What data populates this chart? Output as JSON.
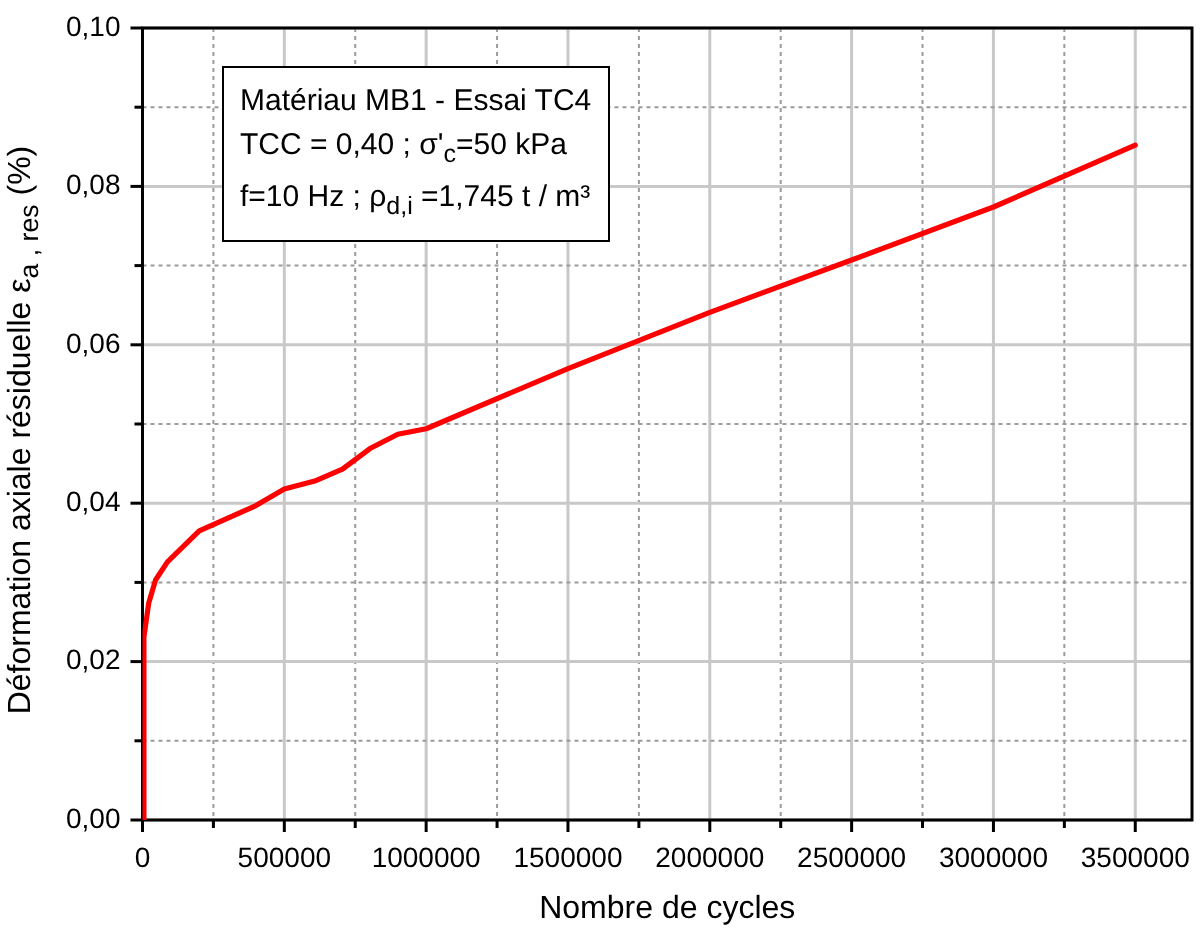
{
  "chart_data": {
    "type": "line",
    "xlabel": "Nombre de cycles",
    "ylabel": "Déformation axiale résiduelle ε$_{a , res}$ (%)",
    "annotations": [
      "Matériau MB1 - Essai TC4",
      "TCC = 0,40 ; σ'$_{c}$=50 kPa",
      "f=10 Hz  ; ρ$_{d,i}$ =1,745 t / m³"
    ],
    "series": [
      {
        "color": "#ff0000",
        "x": [
          0,
          5000,
          22000,
          46000,
          88000,
          200000,
          400000,
          500000,
          607000,
          705000,
          802000,
          900000,
          1000000,
          1500000,
          2000000,
          2500000,
          3000000,
          3500000
        ],
        "values": [
          0,
          0.0231,
          0.0274,
          0.0303,
          0.0326,
          0.0365,
          0.0397,
          0.0418,
          0.0428,
          0.0443,
          0.0469,
          0.0487,
          0.0494,
          0.057,
          0.0641,
          0.0707,
          0.0774,
          0.0852
        ]
      }
    ],
    "xlim": [
      0,
      3700000
    ],
    "xticks": [
      0,
      {
        "value": 250000,
        "label": null
      },
      500000,
      {
        "value": 750000,
        "label": null
      },
      1000000,
      {
        "value": 1250000,
        "label": null
      },
      1500000,
      {
        "value": 1750000,
        "label": null
      },
      2000000,
      {
        "value": 2250000,
        "label": null
      },
      2500000,
      {
        "value": 2750000,
        "label": null
      },
      3000000,
      {
        "value": 3250000,
        "label": null
      },
      3500000
    ],
    "ylim": [
      0,
      0.1
    ],
    "yticks": [
      {
        "value": 0,
        "label": "0,00"
      },
      {
        "value": 0.01,
        "label": null
      },
      {
        "value": 0.02,
        "label": "0,02"
      },
      {
        "value": 0.03,
        "label": null
      },
      {
        "value": 0.04,
        "label": "0,04"
      },
      {
        "value": 0.05,
        "label": null
      },
      {
        "value": 0.06,
        "label": "0,06"
      },
      {
        "value": 0.07,
        "label": null
      },
      {
        "value": 0.08,
        "label": "0,08"
      },
      {
        "value": 0.09,
        "label": null
      },
      {
        "value": 0.1,
        "label": "0,10"
      }
    ],
    "grid": true,
    "legend": false,
    "marker": "none",
    "line_style": "solid"
  }
}
